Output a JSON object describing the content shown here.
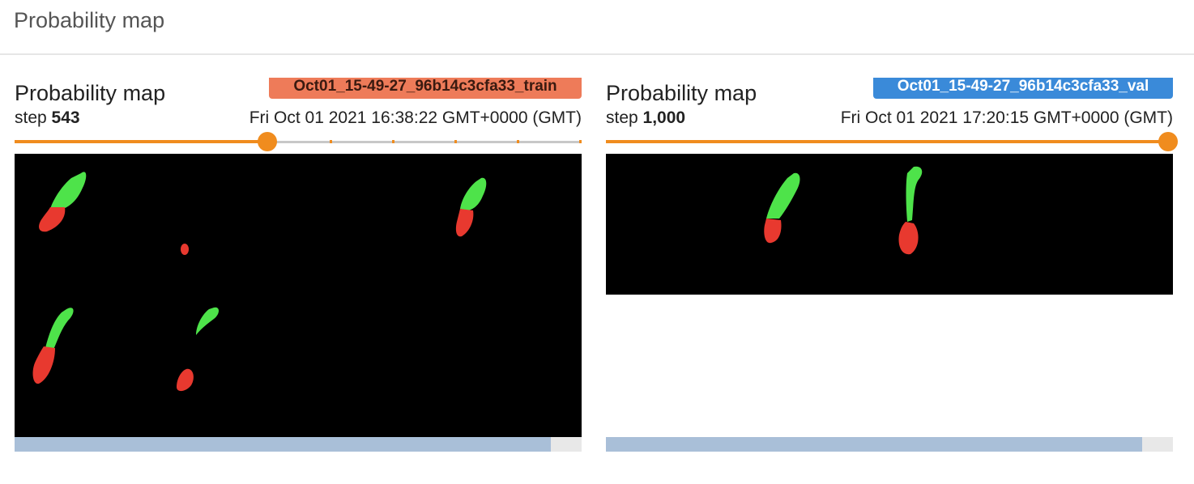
{
  "section": {
    "title": "Probability map"
  },
  "cards": [
    {
      "title": "Probability map",
      "run": "Oct01_15-49-27_96b14c3cfa33_train",
      "run_color": "#ee7b59",
      "step_label": "step",
      "step": "543",
      "timestamp": "Fri Oct 01 2021 16:38:22 GMT+0000 (GMT)",
      "slider_fraction": 0.445,
      "scroll_fraction": 0.945
    },
    {
      "title": "Probability map",
      "run": "Oct01_15-49-27_96b14c3cfa33_val",
      "run_color": "#3a8ad9",
      "step_label": "step",
      "step": "1,000",
      "timestamp": "Fri Oct 01 2021 17:20:15 GMT+0000 (GMT)",
      "slider_fraction": 1.0,
      "scroll_fraction": 0.945
    }
  ],
  "colors": {
    "accent": "#f08c1e",
    "green_class": "#4ee34a",
    "red_class": "#e8392f"
  }
}
